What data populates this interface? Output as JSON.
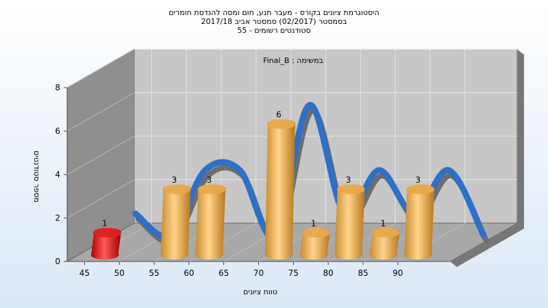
{
  "chart_data": {
    "type": "bar",
    "title_lines": [
      "היסטוגרמת ציונים בקורס - מעבר תנע, חום ומסה להנדסת חומרים",
      "בסמסטר  (02/2017)  סמסטר אביב 2017/18",
      "סטודנטים רשומים - 55"
    ],
    "annotation": "במשימה : Final_B",
    "xlabel": "טווח ציונים",
    "ylabel": "מספר סטודנטים",
    "x_ticks": [
      "45",
      "50",
      "55",
      "60",
      "65",
      "70",
      "75",
      "80",
      "85",
      "90"
    ],
    "y_ticks": [
      "0",
      "2",
      "4",
      "6",
      "8"
    ],
    "ylim": [
      0,
      8
    ],
    "bars": [
      {
        "x": 47.5,
        "value": 1,
        "color": "#e02020"
      },
      {
        "x": 57.5,
        "value": 3,
        "color": "#e8a94a"
      },
      {
        "x": 62.5,
        "value": 3,
        "color": "#e8a94a"
      },
      {
        "x": 72.5,
        "value": 6,
        "color": "#e8a94a"
      },
      {
        "x": 77.5,
        "value": 1,
        "color": "#e8a94a"
      },
      {
        "x": 82.5,
        "value": 3,
        "color": "#e8a94a"
      },
      {
        "x": 87.5,
        "value": 1,
        "color": "#e8a94a"
      },
      {
        "x": 92.5,
        "value": 3,
        "color": "#e8a94a"
      }
    ],
    "curve_color": "#2e6fc7",
    "grid": true
  }
}
